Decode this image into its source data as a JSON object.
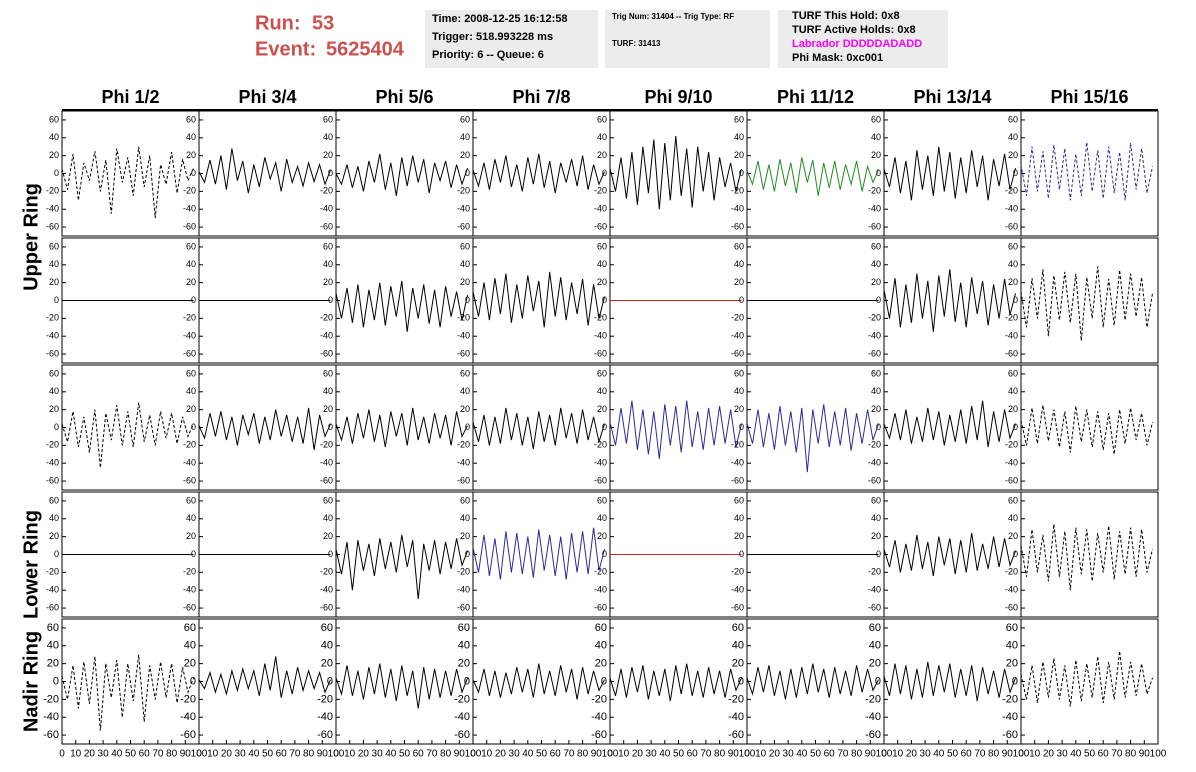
{
  "header": {
    "run_label": "Run:",
    "run": "53",
    "event_label": "Event:",
    "event": "5625404"
  },
  "info": {
    "time": "Time: 2008-12-25 16:12:58",
    "trigger": "Trigger: 518.993228 ms",
    "priority": "Priority: 6 -- Queue: 6",
    "trig": "Trig Num: 31404 -- Trig Type: RF",
    "turf": "TURF: 31413",
    "hold": "TURF This Hold: 0x8",
    "active": "TURF Active Holds: 0x8",
    "labrador": "Labrador DDDDDADADD",
    "phimask": "Phi Mask: 0xc001"
  },
  "columns": [
    "Phi 1/2",
    "Phi 3/4",
    "Phi 5/6",
    "Phi 7/8",
    "Phi 9/10",
    "Phi 11/12",
    "Phi 13/14",
    "Phi 15/16"
  ],
  "rows": [
    "Upper Ring",
    "Lower Ring",
    "Nadir Ring"
  ],
  "chart_data": {
    "type": "line",
    "xlim": [
      0,
      100
    ],
    "xticks": [
      0,
      10,
      20,
      30,
      40,
      50,
      60,
      70,
      80,
      90,
      100
    ],
    "ylim": [
      -70,
      70
    ],
    "yticks": [
      60,
      40,
      20,
      0,
      -20,
      -40,
      -60
    ],
    "x": [
      0,
      4,
      8,
      12,
      16,
      20,
      24,
      28,
      32,
      36,
      40,
      44,
      48,
      52,
      56,
      60,
      64,
      68,
      72,
      76,
      80,
      84,
      88,
      92,
      96
    ],
    "panels": [
      {
        "color": "#000000",
        "dashed": true,
        "values": [
          5,
          -18,
          22,
          -30,
          12,
          -8,
          25,
          -20,
          15,
          -45,
          28,
          -10,
          18,
          -25,
          30,
          -15,
          20,
          -50,
          10,
          -12,
          24,
          -22,
          16,
          -8,
          6
        ]
      },
      {
        "color": "#000000",
        "dashed": false,
        "values": [
          2,
          -10,
          15,
          -12,
          20,
          -18,
          28,
          -8,
          14,
          -22,
          10,
          -15,
          18,
          -6,
          12,
          -20,
          16,
          -10,
          8,
          -14,
          12,
          -9,
          10,
          -12,
          4
        ]
      },
      {
        "color": "#000000",
        "dashed": false,
        "values": [
          0,
          -12,
          10,
          -16,
          8,
          -20,
          14,
          -10,
          22,
          -18,
          12,
          -25,
          18,
          -14,
          20,
          -10,
          16,
          -22,
          12,
          -8,
          14,
          -16,
          10,
          -12,
          6
        ]
      },
      {
        "color": "#000000",
        "dashed": false,
        "values": [
          4,
          -14,
          12,
          -18,
          16,
          -10,
          20,
          -15,
          10,
          -20,
          18,
          -12,
          22,
          -16,
          14,
          -22,
          12,
          -10,
          16,
          -14,
          20,
          -18,
          10,
          -12,
          2
        ]
      },
      {
        "color": "#000000",
        "dashed": false,
        "values": [
          6,
          -20,
          18,
          -28,
          24,
          -35,
          30,
          -22,
          38,
          -40,
          34,
          -30,
          42,
          -25,
          28,
          -38,
          30,
          -20,
          24,
          -30,
          18,
          -15,
          12,
          -20,
          5
        ]
      },
      {
        "color": "#228b22",
        "dashed": false,
        "values": [
          3,
          -12,
          14,
          -18,
          10,
          -20,
          16,
          -14,
          12,
          -22,
          18,
          -10,
          15,
          -25,
          12,
          -16,
          14,
          -18,
          10,
          -12,
          14,
          -20,
          8,
          -10,
          4
        ]
      },
      {
        "color": "#000000",
        "dashed": false,
        "values": [
          5,
          -15,
          18,
          -22,
          14,
          -30,
          26,
          -18,
          20,
          -25,
          30,
          -20,
          24,
          -28,
          18,
          -22,
          26,
          -15,
          20,
          -30,
          16,
          -14,
          22,
          -18,
          6
        ]
      },
      {
        "color": "#2b2b99",
        "dashed": true,
        "values": [
          10,
          -25,
          30,
          -20,
          25,
          -28,
          32,
          -18,
          28,
          -30,
          22,
          -25,
          35,
          -20,
          26,
          -28,
          30,
          -22,
          24,
          -30,
          34,
          -18,
          28,
          -22,
          8
        ]
      },
      {
        "color": "#000000",
        "dashed": false,
        "values": [
          0,
          0,
          0,
          0,
          0,
          0,
          0,
          0,
          0,
          0,
          0,
          0,
          0,
          0,
          0,
          0,
          0,
          0,
          0,
          0,
          0,
          0,
          0,
          0,
          0
        ]
      },
      {
        "color": "#000000",
        "dashed": false,
        "values": [
          0,
          0,
          0,
          0,
          0,
          0,
          0,
          0,
          0,
          0,
          0,
          0,
          0,
          0,
          0,
          0,
          0,
          0,
          0,
          0,
          0,
          0,
          0,
          0,
          0
        ]
      },
      {
        "color": "#000000",
        "dashed": false,
        "values": [
          8,
          -20,
          14,
          -25,
          18,
          -30,
          12,
          -22,
          20,
          -28,
          16,
          -18,
          22,
          -35,
          14,
          -20,
          18,
          -26,
          12,
          -30,
          16,
          -18,
          10,
          -22,
          6
        ]
      },
      {
        "color": "#000000",
        "dashed": false,
        "values": [
          10,
          -18,
          20,
          -22,
          25,
          -15,
          30,
          -25,
          18,
          -20,
          28,
          -12,
          22,
          -30,
          32,
          -18,
          26,
          -22,
          20,
          -15,
          24,
          -28,
          18,
          -20,
          4
        ]
      },
      {
        "color": "#cc2222",
        "dashed": false,
        "values": [
          0,
          0,
          0,
          0,
          0,
          0,
          0,
          0,
          0,
          0,
          0,
          0,
          0,
          0,
          0,
          0,
          0,
          0,
          0,
          0,
          0,
          0,
          0,
          0,
          0
        ]
      },
      {
        "color": "#000000",
        "dashed": false,
        "values": [
          0,
          0,
          0,
          0,
          0,
          0,
          0,
          0,
          0,
          0,
          0,
          0,
          0,
          0,
          0,
          0,
          0,
          0,
          0,
          0,
          0,
          0,
          0,
          0,
          0
        ]
      },
      {
        "color": "#000000",
        "dashed": false,
        "values": [
          12,
          -20,
          25,
          -30,
          18,
          -25,
          30,
          -20,
          22,
          -35,
          28,
          -18,
          35,
          -24,
          20,
          -30,
          26,
          -15,
          22,
          -28,
          18,
          -20,
          24,
          -16,
          8
        ]
      },
      {
        "color": "#000000",
        "dashed": true,
        "values": [
          10,
          -30,
          25,
          -20,
          35,
          -40,
          28,
          -22,
          32,
          -25,
          30,
          -45,
          26,
          -20,
          38,
          -30,
          24,
          -28,
          34,
          -22,
          30,
          -18,
          26,
          -30,
          8
        ]
      },
      {
        "color": "#000000",
        "dashed": true,
        "values": [
          4,
          -16,
          18,
          -22,
          12,
          -28,
          20,
          -45,
          16,
          -14,
          25,
          -20,
          18,
          -22,
          28,
          -16,
          14,
          -20,
          18,
          -12,
          16,
          -18,
          12,
          -10,
          4
        ]
      },
      {
        "color": "#000000",
        "dashed": false,
        "values": [
          2,
          -12,
          16,
          -10,
          18,
          -14,
          12,
          -20,
          14,
          -8,
          16,
          -18,
          12,
          -14,
          20,
          -10,
          14,
          -16,
          12,
          -18,
          22,
          -25,
          14,
          -10,
          4
        ]
      },
      {
        "color": "#000000",
        "dashed": false,
        "values": [
          4,
          -14,
          12,
          -18,
          16,
          -12,
          20,
          -16,
          14,
          -22,
          18,
          -10,
          16,
          -20,
          22,
          -14,
          12,
          -18,
          16,
          -12,
          14,
          -20,
          18,
          -10,
          2
        ]
      },
      {
        "color": "#000000",
        "dashed": false,
        "values": [
          6,
          -16,
          14,
          -20,
          12,
          -18,
          22,
          -14,
          16,
          -20,
          12,
          -24,
          18,
          -16,
          14,
          -20,
          22,
          -12,
          16,
          -18,
          20,
          -14,
          12,
          -16,
          4
        ]
      },
      {
        "color": "#2b2b99",
        "dashed": false,
        "values": [
          6,
          -20,
          22,
          -18,
          30,
          -25,
          20,
          -30,
          18,
          -35,
          26,
          -20,
          24,
          -28,
          30,
          -22,
          18,
          -25,
          22,
          -20,
          24,
          -18,
          20,
          -22,
          4
        ]
      },
      {
        "color": "#2b2b99",
        "dashed": false,
        "values": [
          5,
          -18,
          20,
          -22,
          16,
          -25,
          24,
          -20,
          18,
          -28,
          22,
          -50,
          20,
          -18,
          26,
          -22,
          18,
          -20,
          22,
          -26,
          16,
          -18,
          20,
          -14,
          4
        ]
      },
      {
        "color": "#000000",
        "dashed": false,
        "values": [
          4,
          -12,
          16,
          -14,
          20,
          -18,
          12,
          -16,
          22,
          -14,
          18,
          -20,
          14,
          -16,
          20,
          -18,
          24,
          -14,
          30,
          -22,
          18,
          -16,
          20,
          -12,
          4
        ]
      },
      {
        "color": "#000000",
        "dashed": true,
        "values": [
          8,
          -20,
          22,
          -18,
          25,
          -15,
          20,
          -22,
          18,
          -28,
          24,
          -16,
          20,
          -22,
          18,
          -25,
          16,
          -30,
          20,
          -18,
          22,
          -14,
          16,
          -20,
          6
        ]
      },
      {
        "color": "#000000",
        "dashed": false,
        "values": [
          0,
          0,
          0,
          0,
          0,
          0,
          0,
          0,
          0,
          0,
          0,
          0,
          0,
          0,
          0,
          0,
          0,
          0,
          0,
          0,
          0,
          0,
          0,
          0,
          0
        ]
      },
      {
        "color": "#000000",
        "dashed": false,
        "values": [
          0,
          0,
          0,
          0,
          0,
          0,
          0,
          0,
          0,
          0,
          0,
          0,
          0,
          0,
          0,
          0,
          0,
          0,
          0,
          0,
          0,
          0,
          0,
          0,
          0
        ]
      },
      {
        "color": "#000000",
        "dashed": false,
        "values": [
          6,
          -22,
          14,
          -40,
          16,
          -18,
          12,
          -24,
          18,
          -16,
          14,
          -20,
          22,
          -14,
          16,
          -50,
          12,
          -18,
          16,
          -22,
          14,
          -16,
          18,
          -12,
          4
        ]
      },
      {
        "color": "#2b2b99",
        "dashed": false,
        "values": [
          8,
          -20,
          22,
          -24,
          18,
          -28,
          26,
          -20,
          24,
          -22,
          20,
          -26,
          28,
          -18,
          22,
          -24,
          20,
          -28,
          24,
          -20,
          26,
          -22,
          30,
          -18,
          6
        ]
      },
      {
        "color": "#cc2222",
        "dashed": false,
        "values": [
          0,
          0,
          0,
          0,
          0,
          0,
          0,
          0,
          0,
          0,
          0,
          0,
          0,
          0,
          0,
          0,
          0,
          0,
          0,
          0,
          0,
          0,
          0,
          0,
          0
        ]
      },
      {
        "color": "#000000",
        "dashed": false,
        "values": [
          0,
          0,
          0,
          0,
          0,
          0,
          0,
          0,
          0,
          0,
          0,
          0,
          0,
          0,
          0,
          0,
          0,
          0,
          0,
          0,
          0,
          0,
          0,
          0,
          0
        ]
      },
      {
        "color": "#000000",
        "dashed": false,
        "values": [
          6,
          -14,
          16,
          -20,
          12,
          -18,
          22,
          -16,
          14,
          -24,
          20,
          -12,
          18,
          -22,
          16,
          -20,
          24,
          -18,
          12,
          -16,
          20,
          -14,
          18,
          -12,
          4
        ]
      },
      {
        "color": "#000000",
        "dashed": true,
        "values": [
          10,
          -25,
          28,
          -20,
          22,
          -30,
          34,
          -25,
          26,
          -40,
          30,
          -22,
          28,
          -30,
          24,
          -20,
          32,
          -28,
          26,
          -22,
          30,
          -25,
          28,
          -20,
          6
        ]
      },
      {
        "color": "#000000",
        "dashed": true,
        "values": [
          6,
          -20,
          18,
          -30,
          22,
          -25,
          28,
          -55,
          20,
          -18,
          24,
          -40,
          20,
          -22,
          30,
          -45,
          18,
          -20,
          22,
          -18,
          20,
          -24,
          16,
          -12,
          4
        ]
      },
      {
        "color": "#000000",
        "dashed": false,
        "values": [
          2,
          -8,
          10,
          -12,
          8,
          -14,
          12,
          -10,
          14,
          -8,
          12,
          -16,
          20,
          -10,
          28,
          -18,
          12,
          -14,
          16,
          -10,
          12,
          -8,
          10,
          -12,
          2
        ]
      },
      {
        "color": "#000000",
        "dashed": false,
        "values": [
          4,
          -14,
          18,
          -16,
          12,
          -20,
          16,
          -14,
          20,
          -18,
          14,
          -22,
          18,
          -16,
          12,
          -30,
          16,
          -20,
          14,
          -18,
          12,
          -16,
          14,
          -12,
          4
        ]
      },
      {
        "color": "#000000",
        "dashed": false,
        "values": [
          2,
          -12,
          14,
          -16,
          12,
          -18,
          10,
          -14,
          16,
          -12,
          14,
          -18,
          20,
          -14,
          12,
          -16,
          18,
          -12,
          14,
          -20,
          16,
          -14,
          12,
          -10,
          2
        ]
      },
      {
        "color": "#000000",
        "dashed": false,
        "values": [
          4,
          -16,
          14,
          -18,
          16,
          -12,
          18,
          -20,
          12,
          -16,
          14,
          -22,
          18,
          -14,
          20,
          -16,
          12,
          -18,
          16,
          -14,
          12,
          -18,
          14,
          -10,
          4
        ]
      },
      {
        "color": "#000000",
        "dashed": false,
        "values": [
          4,
          -14,
          16,
          -12,
          18,
          -16,
          12,
          -20,
          14,
          -18,
          16,
          -14,
          20,
          -12,
          14,
          -18,
          16,
          -14,
          12,
          -16,
          18,
          -12,
          14,
          -10,
          2
        ]
      },
      {
        "color": "#000000",
        "dashed": false,
        "values": [
          6,
          -16,
          20,
          -14,
          18,
          -20,
          14,
          -18,
          22,
          -16,
          18,
          -12,
          20,
          -18,
          14,
          -16,
          18,
          -22,
          16,
          -14,
          12,
          -18,
          14,
          -12,
          4
        ]
      },
      {
        "color": "#000000",
        "dashed": true,
        "values": [
          8,
          -20,
          18,
          -24,
          22,
          -18,
          26,
          -20,
          18,
          -28,
          24,
          -22,
          20,
          -18,
          28,
          -24,
          22,
          -20,
          34,
          -18,
          22,
          -16,
          20,
          -14,
          4
        ]
      }
    ]
  }
}
